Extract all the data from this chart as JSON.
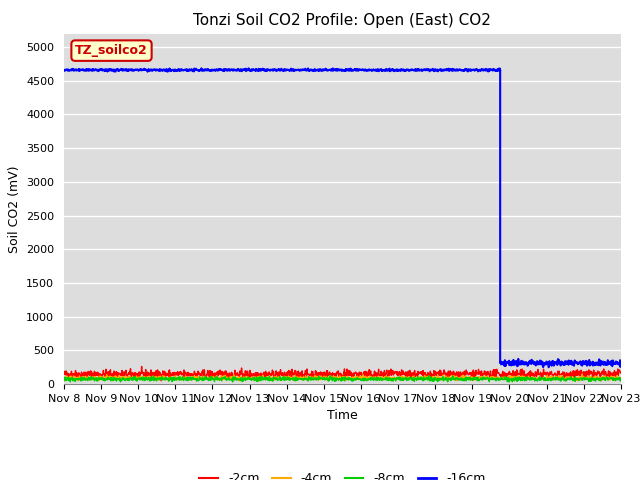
{
  "title": "Tonzi Soil CO2 Profile: Open (East) CO2",
  "ylabel": "Soil CO2 (mV)",
  "xlabel": "Time",
  "ylim": [
    0,
    5200
  ],
  "yticks": [
    0,
    500,
    1000,
    1500,
    2000,
    2500,
    3000,
    3500,
    4000,
    4500,
    5000
  ],
  "date_start": 8,
  "date_end": 23,
  "bg_color": "#dddddd",
  "fig_color": "#ffffff",
  "grid_color": "#ffffff",
  "series": {
    "2cm": {
      "color": "#ff0000",
      "base": 145,
      "noise": 30
    },
    "4cm": {
      "color": "#ffaa00",
      "base": 90,
      "noise": 15
    },
    "8cm": {
      "color": "#00cc00",
      "base": 75,
      "noise": 15
    },
    "16cm": {
      "color": "#0000ff",
      "base": 4660,
      "noise": 8,
      "drop_day": 19.75,
      "post_drop": 310,
      "post_noise": 20
    }
  },
  "n_points": 1500,
  "title_fontsize": 11,
  "axis_fontsize": 9,
  "tick_fontsize": 8,
  "legend_fontsize": 9,
  "annotation_box": {
    "text": "TZ_soilco2",
    "facecolor": "#ffffcc",
    "edgecolor": "#cc0000",
    "fontcolor": "#cc0000",
    "fontsize": 9,
    "fontweight": "bold"
  }
}
